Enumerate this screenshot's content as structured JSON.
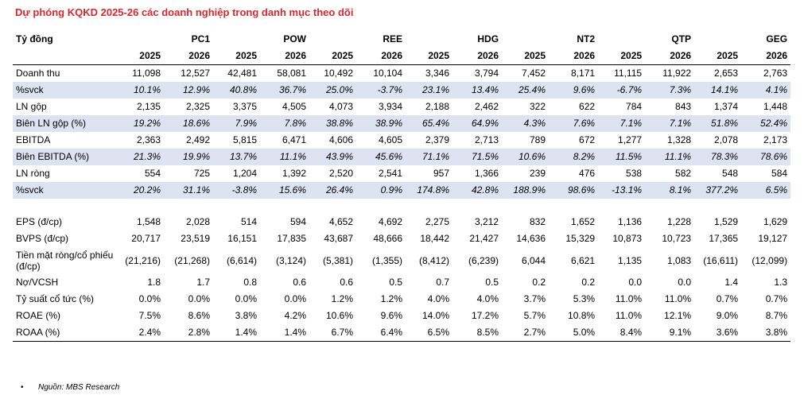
{
  "title": "Dự phóng KQKD 2025-26 các doanh nghiệp trong danh mục theo dõi",
  "header_label": "Tỷ đồng",
  "companies": [
    "PC1",
    "POW",
    "REE",
    "HDG",
    "NT2",
    "QTP",
    "GEG"
  ],
  "years": [
    "2025",
    "2026",
    "2025",
    "2026",
    "2025",
    "2026",
    "2025",
    "2026",
    "2025",
    "2026",
    "2025",
    "2026",
    "2025",
    "2026"
  ],
  "rows": [
    {
      "label": "Doanh thu",
      "values": [
        "11,098",
        "12,527",
        "42,481",
        "58,081",
        "10,492",
        "10,104",
        "3,346",
        "3,794",
        "7,452",
        "8,171",
        "11,115",
        "11,922",
        "2,653",
        "2,763"
      ]
    },
    {
      "label": "%svck",
      "values": [
        "10.1%",
        "12.9%",
        "40.8%",
        "36.7%",
        "25.0%",
        "-3.7%",
        "23.1%",
        "13.4%",
        "25.4%",
        "9.6%",
        "-6.7%",
        "7.3%",
        "14.1%",
        "4.1%"
      ]
    },
    {
      "label": "LN gộp",
      "values": [
        "2,135",
        "2,325",
        "3,375",
        "4,505",
        "4,073",
        "3,934",
        "2,188",
        "2,462",
        "322",
        "622",
        "784",
        "843",
        "1,374",
        "1,448"
      ]
    },
    {
      "label": "Biên LN gộp (%)",
      "values": [
        "19.2%",
        "18.6%",
        "7.9%",
        "7.8%",
        "38.8%",
        "38.9%",
        "65.4%",
        "64.9%",
        "4.3%",
        "7.6%",
        "7.1%",
        "7.1%",
        "51.8%",
        "52.4%"
      ]
    },
    {
      "label": "EBITDA",
      "values": [
        "2,363",
        "2,492",
        "5,815",
        "6,471",
        "4,606",
        "4,605",
        "2,379",
        "2,713",
        "789",
        "672",
        "1,277",
        "1,328",
        "2,078",
        "2,173"
      ]
    },
    {
      "label": "Biên EBITDA (%)",
      "values": [
        "21.3%",
        "19.9%",
        "13.7%",
        "11.1%",
        "43.9%",
        "45.6%",
        "71.1%",
        "71.5%",
        "10.6%",
        "8.2%",
        "11.5%",
        "11.1%",
        "78.3%",
        "78.6%"
      ]
    },
    {
      "label": "LN ròng",
      "values": [
        "554",
        "725",
        "1,204",
        "1,392",
        "2,520",
        "2,541",
        "957",
        "1,366",
        "239",
        "476",
        "538",
        "582",
        "548",
        "584"
      ]
    },
    {
      "label": "%svck",
      "values": [
        "20.2%",
        "31.1%",
        "-3.8%",
        "15.6%",
        "26.4%",
        "0.9%",
        "174.8%",
        "42.8%",
        "188.9%",
        "98.6%",
        "-13.1%",
        "8.1%",
        "377.2%",
        "6.5%"
      ]
    },
    {
      "label": "EPS (đ/cp)",
      "values": [
        "1,548",
        "2,028",
        "514",
        "594",
        "4,652",
        "4,692",
        "2,275",
        "3,212",
        "832",
        "1,652",
        "1,136",
        "1,228",
        "1,529",
        "1,629"
      ]
    },
    {
      "label": "BVPS (đ/cp)",
      "values": [
        "20,717",
        "23,519",
        "16,151",
        "17,835",
        "43,687",
        "48,666",
        "18,442",
        "21,427",
        "14,636",
        "15,329",
        "10,873",
        "10,723",
        "17,365",
        "19,127"
      ]
    },
    {
      "label": "Tiền mặt ròng/cổ phiếu (đ/cp)",
      "values": [
        "(21,216)",
        "(21,268)",
        "(6,614)",
        "(3,124)",
        "(5,381)",
        "(1,355)",
        "(8,412)",
        "(6,239)",
        "6,044",
        "6,621",
        "1,135",
        "1,083",
        "(16,611)",
        "(12,099)"
      ]
    },
    {
      "label": "Nợ/VCSH",
      "values": [
        "1.8",
        "1.7",
        "0.8",
        "0.6",
        "0.6",
        "0.5",
        "0.7",
        "0.5",
        "0.2",
        "0.2",
        "0.0",
        "0.0",
        "1.4",
        "1.3"
      ]
    },
    {
      "label": "Tỷ suất cổ tức (%)",
      "values": [
        "0.0%",
        "0.0%",
        "0.0%",
        "0.0%",
        "1.2%",
        "1.2%",
        "4.0%",
        "4.0%",
        "3.7%",
        "5.3%",
        "11.0%",
        "11.0%",
        "0.7%",
        "0.7%"
      ]
    },
    {
      "label": "ROAE (%)",
      "values": [
        "7.5%",
        "8.6%",
        "3.8%",
        "4.2%",
        "10.6%",
        "9.6%",
        "14.0%",
        "17.2%",
        "5.7%",
        "10.8%",
        "11.0%",
        "12.1%",
        "9.0%",
        "8.7%"
      ]
    },
    {
      "label": "ROAA (%)",
      "values": [
        "2.4%",
        "2.8%",
        "1.4%",
        "1.4%",
        "6.7%",
        "6.4%",
        "6.5%",
        "8.5%",
        "2.7%",
        "5.0%",
        "8.4%",
        "9.1%",
        "3.6%",
        "3.8%"
      ]
    }
  ],
  "source": "Nguồn: MBS Research",
  "bullet": "•"
}
